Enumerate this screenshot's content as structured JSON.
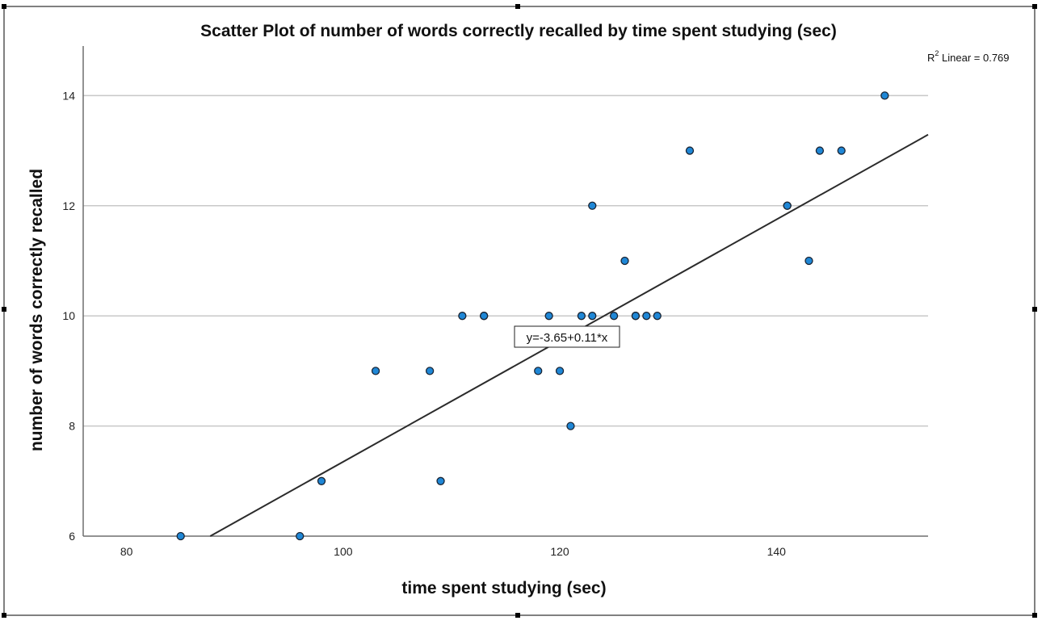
{
  "chart_data": {
    "type": "scatter",
    "title": "Scatter Plot of number of words correctly recalled by time spent studying (sec)",
    "xlabel": "time spent studying (sec)",
    "ylabel": "number of words correctly recalled",
    "xlim": [
      76,
      154
    ],
    "ylim": [
      6,
      14.9
    ],
    "xticks": [
      80,
      100,
      120,
      140
    ],
    "yticks": [
      6,
      8,
      10,
      12,
      14
    ],
    "grid": "horizontal",
    "points": [
      {
        "x": 85,
        "y": 6
      },
      {
        "x": 96,
        "y": 6
      },
      {
        "x": 98,
        "y": 7
      },
      {
        "x": 103,
        "y": 9
      },
      {
        "x": 108,
        "y": 9
      },
      {
        "x": 109,
        "y": 7
      },
      {
        "x": 111,
        "y": 10
      },
      {
        "x": 113,
        "y": 10
      },
      {
        "x": 113,
        "y": 10
      },
      {
        "x": 118,
        "y": 9
      },
      {
        "x": 119,
        "y": 10
      },
      {
        "x": 120,
        "y": 9
      },
      {
        "x": 121,
        "y": 8
      },
      {
        "x": 122,
        "y": 10
      },
      {
        "x": 123,
        "y": 10
      },
      {
        "x": 123,
        "y": 12
      },
      {
        "x": 125,
        "y": 10
      },
      {
        "x": 126,
        "y": 11
      },
      {
        "x": 127,
        "y": 10
      },
      {
        "x": 127,
        "y": 10
      },
      {
        "x": 128,
        "y": 10
      },
      {
        "x": 129,
        "y": 10
      },
      {
        "x": 132,
        "y": 13
      },
      {
        "x": 141,
        "y": 12
      },
      {
        "x": 141,
        "y": 12
      },
      {
        "x": 143,
        "y": 11
      },
      {
        "x": 144,
        "y": 13
      },
      {
        "x": 146,
        "y": 13
      },
      {
        "x": 150,
        "y": 14
      }
    ],
    "fit": {
      "intercept": -3.65,
      "slope": 0.11
    },
    "fit_label": "y=-3.65+0.11*x",
    "r2_label_prefix": "R",
    "r2_label_sup": "2",
    "r2_label_suffix": " Linear = 0.769",
    "colors": {
      "point_fill": "#1f87d6",
      "point_stroke": "#1a2433",
      "line": "#2b2b2b",
      "grid": "#c8c8c8",
      "axis": "#6e6e6e"
    }
  }
}
